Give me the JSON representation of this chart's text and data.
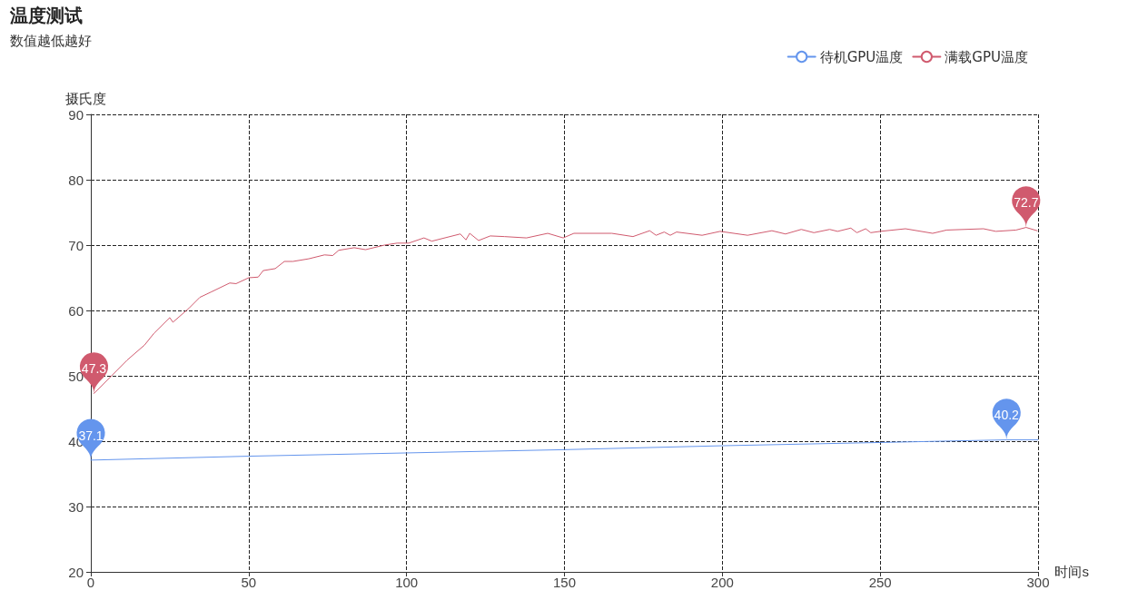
{
  "chart_data": {
    "type": "line",
    "title": "温度测试",
    "subtitle": "数值越低越好",
    "xlabel": "时间s",
    "ylabel": "摄氏度",
    "xlim": [
      0,
      300
    ],
    "xticks": [
      0,
      50,
      100,
      150,
      200,
      250,
      300
    ],
    "ylim": [
      20,
      90
    ],
    "yticks": [
      20,
      30,
      40,
      50,
      60,
      70,
      80,
      90
    ],
    "grid": true,
    "legend": "top right",
    "marker": "none",
    "line_style": "solid",
    "series": [
      {
        "name": "待机GPU温度",
        "color": "#6495ed",
        "x": [
          0,
          50,
          100,
          150,
          200,
          250,
          290,
          300
        ],
        "values": [
          37.1,
          37.7,
          38.2,
          38.7,
          39.3,
          39.8,
          40.2,
          40.2
        ]
      },
      {
        "name": "满载GPU温度",
        "color": "#d05a6e",
        "x": [
          1,
          11.5,
          17,
          20,
          25,
          26,
          31,
          34.5,
          38,
          44,
          46,
          50,
          53,
          54.6,
          58.4,
          61.3,
          64,
          69,
          74,
          76.6,
          78.5,
          83.4,
          87,
          93,
          97,
          100.7,
          105.5,
          108,
          117,
          118.8,
          120,
          122.8,
          126.5,
          131,
          138,
          144.7,
          149.6,
          153,
          165,
          171.7,
          177,
          179,
          181.6,
          183.5,
          185.5,
          193.6,
          199.3,
          208,
          215.7,
          220,
          225,
          229,
          234,
          236.5,
          240.7,
          242.6,
          245.4,
          247,
          250,
          258,
          266.6,
          271,
          282.7,
          286.6,
          293,
          296.2,
          299.7
        ],
        "values": [
          47.3,
          52.4,
          54.7,
          56.5,
          58.9,
          58.2,
          60.3,
          62.0,
          62.8,
          64.2,
          64.1,
          65.0,
          65.1,
          66.1,
          66.4,
          67.5,
          67.5,
          67.9,
          68.5,
          68.4,
          69.2,
          69.6,
          69.3,
          70.0,
          70.3,
          70.3,
          71.1,
          70.6,
          71.7,
          70.8,
          71.8,
          70.7,
          71.4,
          71.3,
          71.1,
          71.8,
          71.1,
          71.8,
          71.8,
          71.3,
          72.2,
          71.5,
          72.0,
          71.5,
          72.0,
          71.5,
          72.1,
          71.5,
          72.2,
          71.7,
          72.4,
          71.9,
          72.4,
          72.1,
          72.6,
          71.9,
          72.5,
          71.9,
          72.1,
          72.5,
          71.8,
          72.3,
          72.5,
          72.1,
          72.3,
          72.7,
          72.2
        ]
      }
    ],
    "annotations": [
      {
        "text": "37.1",
        "x": 0,
        "y": 37.1
      },
      {
        "text": "40.2",
        "x": 290,
        "y": 40.2
      },
      {
        "text": "47.3",
        "x": 1,
        "y": 47.3
      },
      {
        "text": "72.7",
        "x": 296.2,
        "y": 72.7
      }
    ]
  }
}
